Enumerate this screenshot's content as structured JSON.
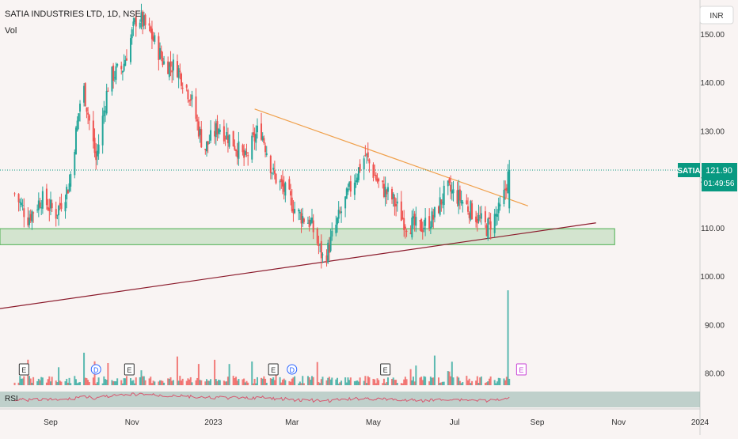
{
  "header": {
    "title": "SATIA INDUSTRIES LTD, 1D, NSE",
    "vol_label": "Vol",
    "currency": "INR"
  },
  "price_tag": {
    "symbol": "SATIA",
    "price": "121.90",
    "countdown": "01:49:56"
  },
  "rsi": {
    "label": "RSI"
  },
  "colors": {
    "up": "#26a69a",
    "down": "#ef5350",
    "trend_down": "#f0a04b",
    "trend_up": "#8b1a2b",
    "zone": "#4caf50",
    "rsi_line": "#d9566e",
    "rsi_band": "#8fb3a9"
  },
  "chart_data": {
    "type": "candlestick",
    "x_ticks": [
      "Sep",
      "Nov",
      "2023",
      "Mar",
      "May",
      "Jul",
      "Sep",
      "Nov",
      "2024"
    ],
    "y_ticks": [
      "150.00",
      "140.00",
      "130.00",
      "120.00",
      "110.00",
      "100.00",
      "90.00",
      "80.00"
    ],
    "ylim": [
      77,
      157
    ],
    "last_price": 121.9,
    "support_zone": [
      106.5,
      109.8
    ],
    "descending_trendline": [
      {
        "date": "2023-02-01",
        "price": 134.5
      },
      {
        "date": "2023-08-25",
        "price": 114.5
      }
    ],
    "ascending_trendline": [
      {
        "date": "2022-07-25",
        "price": 93.3
      },
      {
        "date": "2023-10-15",
        "price": 111.0
      }
    ],
    "price_path": [
      {
        "date": "2022-08-05",
        "price": 117
      },
      {
        "date": "2022-08-15",
        "price": 112
      },
      {
        "date": "2022-08-25",
        "price": 116
      },
      {
        "date": "2022-09-05",
        "price": 113
      },
      {
        "date": "2022-09-15",
        "price": 119
      },
      {
        "date": "2022-09-25",
        "price": 140
      },
      {
        "date": "2022-10-05",
        "price": 124
      },
      {
        "date": "2022-10-15",
        "price": 141
      },
      {
        "date": "2022-10-25",
        "price": 143
      },
      {
        "date": "2022-11-05",
        "price": 154
      },
      {
        "date": "2022-11-15",
        "price": 150
      },
      {
        "date": "2022-11-25",
        "price": 144
      },
      {
        "date": "2022-12-05",
        "price": 143
      },
      {
        "date": "2022-12-15",
        "price": 137
      },
      {
        "date": "2022-12-25",
        "price": 126
      },
      {
        "date": "2023-01-05",
        "price": 131
      },
      {
        "date": "2023-01-15",
        "price": 128
      },
      {
        "date": "2023-01-25",
        "price": 124
      },
      {
        "date": "2023-02-05",
        "price": 131
      },
      {
        "date": "2023-02-15",
        "price": 121
      },
      {
        "date": "2023-02-25",
        "price": 117
      },
      {
        "date": "2023-03-05",
        "price": 113
      },
      {
        "date": "2023-03-15",
        "price": 111
      },
      {
        "date": "2023-03-25",
        "price": 103
      },
      {
        "date": "2023-04-05",
        "price": 112
      },
      {
        "date": "2023-04-15",
        "price": 119
      },
      {
        "date": "2023-04-25",
        "price": 125
      },
      {
        "date": "2023-05-05",
        "price": 119
      },
      {
        "date": "2023-05-15",
        "price": 116
      },
      {
        "date": "2023-05-25",
        "price": 111
      },
      {
        "date": "2023-06-05",
        "price": 110
      },
      {
        "date": "2023-06-15",
        "price": 112
      },
      {
        "date": "2023-06-25",
        "price": 118
      },
      {
        "date": "2023-07-05",
        "price": 116
      },
      {
        "date": "2023-07-15",
        "price": 113
      },
      {
        "date": "2023-07-25",
        "price": 110
      },
      {
        "date": "2023-08-05",
        "price": 114
      },
      {
        "date": "2023-08-11",
        "price": 121.9
      }
    ],
    "volume_spikes": [
      {
        "date": "2023-06-25"
      },
      {
        "date": "2023-08-10"
      }
    ],
    "event_markers": [
      {
        "date": "2022-08-12",
        "label": "E"
      },
      {
        "date": "2022-10-05",
        "label": "D"
      },
      {
        "date": "2022-10-30",
        "label": "E"
      },
      {
        "date": "2023-02-15",
        "label": "E"
      },
      {
        "date": "2023-03-01",
        "label": "D"
      },
      {
        "date": "2023-05-10",
        "label": "E"
      },
      {
        "date": "2023-08-20",
        "label": "E"
      }
    ]
  }
}
